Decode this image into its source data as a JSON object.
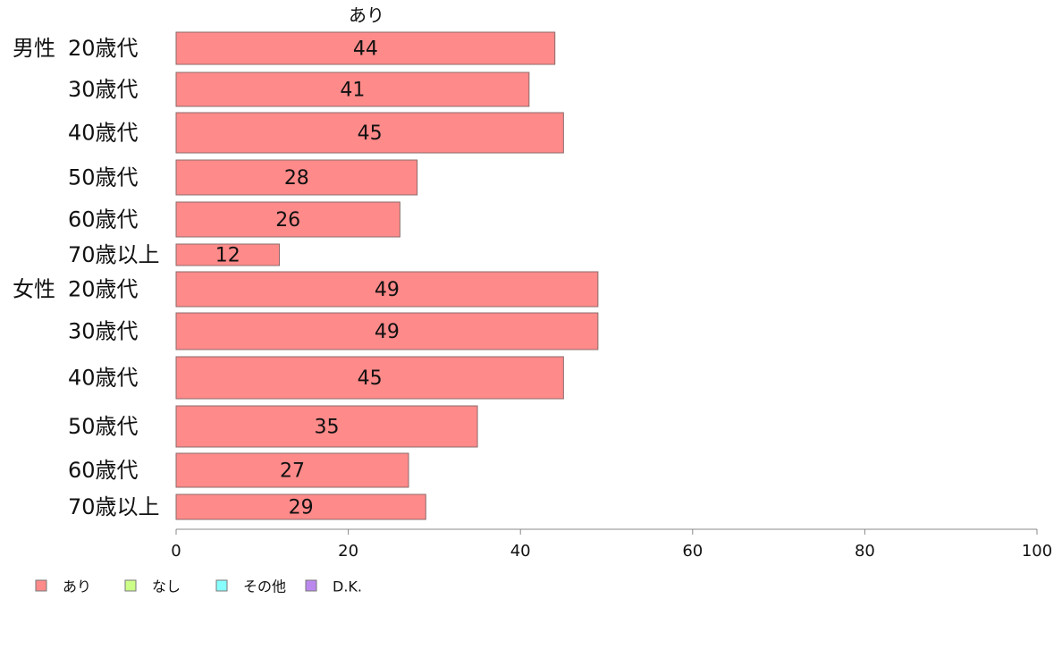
{
  "chart_data": {
    "type": "bar",
    "orientation": "horizontal",
    "title": "あり",
    "xlim": [
      0,
      100
    ],
    "xticks": [
      "0",
      "20",
      "40",
      "60",
      "80",
      "100"
    ],
    "groups": [
      {
        "label": "男性",
        "categories": [
          "20歳代",
          "30歳代",
          "40歳代",
          "50歳代",
          "60歳代",
          "70歳以上"
        ],
        "values": [
          44,
          41,
          45,
          28,
          26,
          12
        ]
      },
      {
        "label": "女性",
        "categories": [
          "20歳代",
          "30歳代",
          "40歳代",
          "50歳代",
          "60歳代",
          "70歳以上"
        ],
        "values": [
          49,
          49,
          45,
          35,
          27,
          29
        ]
      }
    ],
    "series_color": "#ff8a8a",
    "legend": {
      "position": "bottom-left",
      "items": [
        {
          "label": "あり",
          "color": "#ff8a8a"
        },
        {
          "label": "なし",
          "color": "#ccff88"
        },
        {
          "label": "その他",
          "color": "#88ffff"
        },
        {
          "label": "D.K.",
          "color": "#bb88ee"
        }
      ]
    },
    "grid": false
  }
}
